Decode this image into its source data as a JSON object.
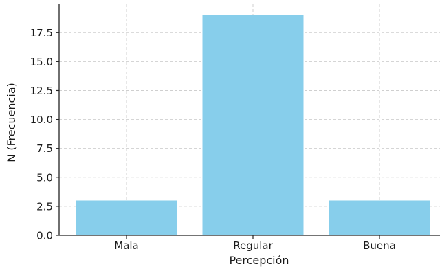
{
  "chart_data": {
    "type": "bar",
    "title": "",
    "xlabel": "Percepción",
    "ylabel": "N (Frecuencia)",
    "categories": [
      "Mala",
      "Regular",
      "Buena"
    ],
    "values": [
      3,
      19,
      3
    ],
    "ylim": [
      0,
      19.95
    ],
    "yticks": [
      0.0,
      2.5,
      5.0,
      7.5,
      10.0,
      12.5,
      15.0,
      17.5
    ],
    "ytick_labels": [
      "0.0",
      "2.5",
      "5.0",
      "7.5",
      "10.0",
      "12.5",
      "15.0",
      "17.5"
    ],
    "grid": true,
    "bar_color": "#87ceeb"
  }
}
